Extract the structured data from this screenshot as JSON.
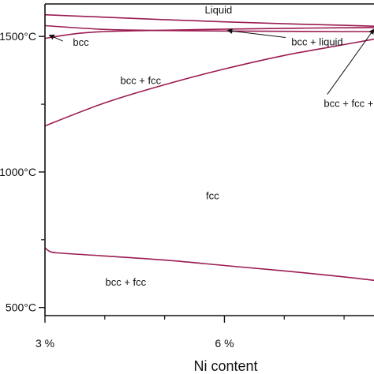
{
  "chart_data": {
    "type": "line",
    "xlabel": "Ni content",
    "x_ticks": [
      {
        "value": 3,
        "label": "3 %"
      },
      {
        "value": 6,
        "label": "6 %"
      }
    ],
    "x_minor_ticks": [
      4,
      5,
      7,
      8
    ],
    "y_ticks": [
      {
        "value": 1500,
        "label": "1500°C"
      },
      {
        "value": 1000,
        "label": "1000°C"
      },
      {
        "value": 500,
        "label": "500°C"
      }
    ],
    "y_minor_ticks": [
      1250,
      750
    ],
    "xlim": [
      3,
      8.5
    ],
    "ylim": [
      470,
      1620
    ],
    "line_color": "#9b1b52",
    "series": [
      {
        "x": [
          3,
          4,
          5,
          6,
          7,
          8,
          8.5
        ],
        "y": [
          1580,
          1571,
          1562,
          1554,
          1547,
          1541,
          1538
        ]
      },
      {
        "x": [
          3,
          3.5,
          4,
          5,
          6,
          7,
          8,
          8.5
        ],
        "y": [
          1493,
          1510,
          1518,
          1523,
          1527,
          1530,
          1532,
          1533
        ]
      },
      {
        "x": [
          3,
          4,
          5,
          6,
          7,
          8,
          8.5
        ],
        "y": [
          1540,
          1526,
          1522,
          1520,
          1519,
          1518,
          1518
        ]
      },
      {
        "x": [
          3,
          4,
          5,
          6,
          7,
          8,
          8.5
        ],
        "y": [
          1170,
          1255,
          1322,
          1380,
          1430,
          1470,
          1490
        ]
      },
      {
        "x": [
          3,
          3.1,
          3.3,
          4,
          5,
          6,
          7,
          8,
          8.5
        ],
        "y": [
          720,
          705,
          700,
          690,
          675,
          655,
          635,
          613,
          600
        ]
      }
    ],
    "region_labels": [
      {
        "text": "Liquid",
        "x": 5.9,
        "y": 1585
      },
      {
        "text": "bcc",
        "x": 3.6,
        "y": 1465
      },
      {
        "text": "bcc + fcc",
        "x": 4.6,
        "y": 1325
      },
      {
        "text": "fcc",
        "x": 5.8,
        "y": 900
      },
      {
        "text": "bcc + fcc",
        "x": 4.35,
        "y": 580
      }
    ],
    "arrow_labels": [
      {
        "text": "bcc + liquid",
        "x": 7.55,
        "y": 1467,
        "arrow_to": [
          6.05,
          1528
        ]
      },
      {
        "text": "bcc + fcc + liquid",
        "x": 8.3,
        "y": 1240,
        "arrow_to": [
          8.5,
          1533
        ]
      }
    ],
    "extra_arrows": [
      {
        "from": [
          3.3,
          1483
        ],
        "to": [
          3.07,
          1505
        ]
      }
    ]
  }
}
